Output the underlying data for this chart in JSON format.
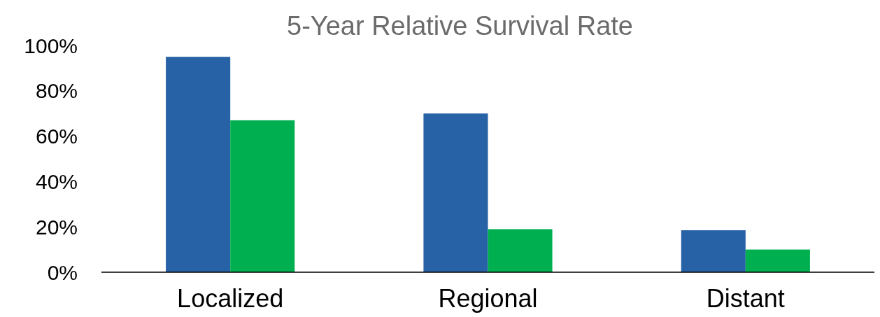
{
  "chart_data": {
    "type": "bar",
    "title": "5-Year Relative Survival Rate",
    "categories": [
      "Localized",
      "Regional",
      "Distant"
    ],
    "series": [
      {
        "color": "#2862a6",
        "values": [
          95,
          70,
          18.5
        ]
      },
      {
        "color": "#00b050",
        "values": [
          67,
          19,
          10
        ]
      }
    ],
    "ylim": [
      0,
      100
    ],
    "yticks": [
      {
        "value": 0,
        "label": "0%"
      },
      {
        "value": 20,
        "label": "20%"
      },
      {
        "value": 40,
        "label": "40%"
      },
      {
        "value": 60,
        "label": "60%"
      },
      {
        "value": 80,
        "label": "80%"
      },
      {
        "value": 100,
        "label": "100%"
      }
    ],
    "grid": false
  }
}
